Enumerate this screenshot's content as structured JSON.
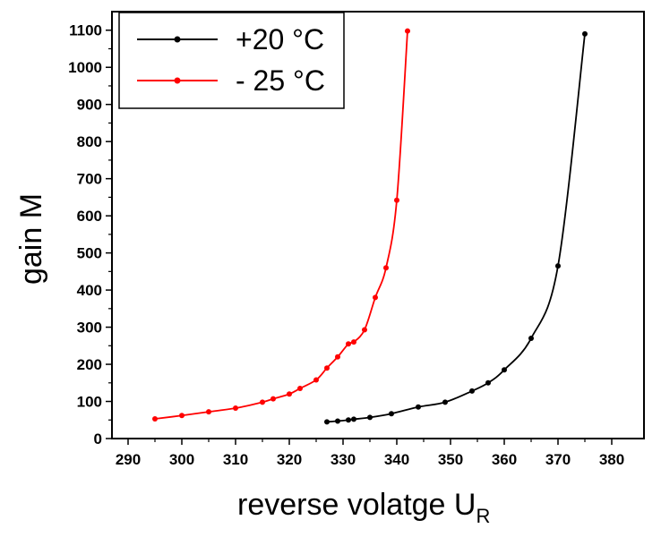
{
  "chart_data": {
    "type": "line",
    "xlabel": "reverse volatge U",
    "xlabel_subscript": "R",
    "ylabel": "gain M",
    "xlim": [
      287,
      386
    ],
    "ylim": [
      0,
      1150
    ],
    "xticks": [
      290,
      300,
      310,
      320,
      330,
      340,
      350,
      360,
      370,
      380
    ],
    "yticks": [
      0,
      100,
      200,
      300,
      400,
      500,
      600,
      700,
      800,
      900,
      1000,
      1100
    ],
    "grid": false,
    "legend": "top-left",
    "series": [
      {
        "name": "+20 °C",
        "color": "#000000",
        "x": [
          327,
          329,
          331,
          332,
          335,
          339,
          344,
          349,
          354,
          357,
          360,
          365,
          370,
          375
        ],
        "y": [
          45,
          47,
          50,
          52,
          57,
          67,
          85,
          98,
          128,
          150,
          185,
          270,
          465,
          1090
        ]
      },
      {
        "name": "- 25 °C",
        "color": "#ff0000",
        "x": [
          295,
          300,
          305,
          310,
          315,
          317,
          320,
          322,
          325,
          327,
          329,
          331,
          332,
          334,
          336,
          338,
          340,
          342
        ],
        "y": [
          53,
          62,
          72,
          82,
          98,
          107,
          120,
          135,
          158,
          190,
          220,
          255,
          260,
          293,
          380,
          460,
          642,
          1098
        ]
      }
    ]
  }
}
